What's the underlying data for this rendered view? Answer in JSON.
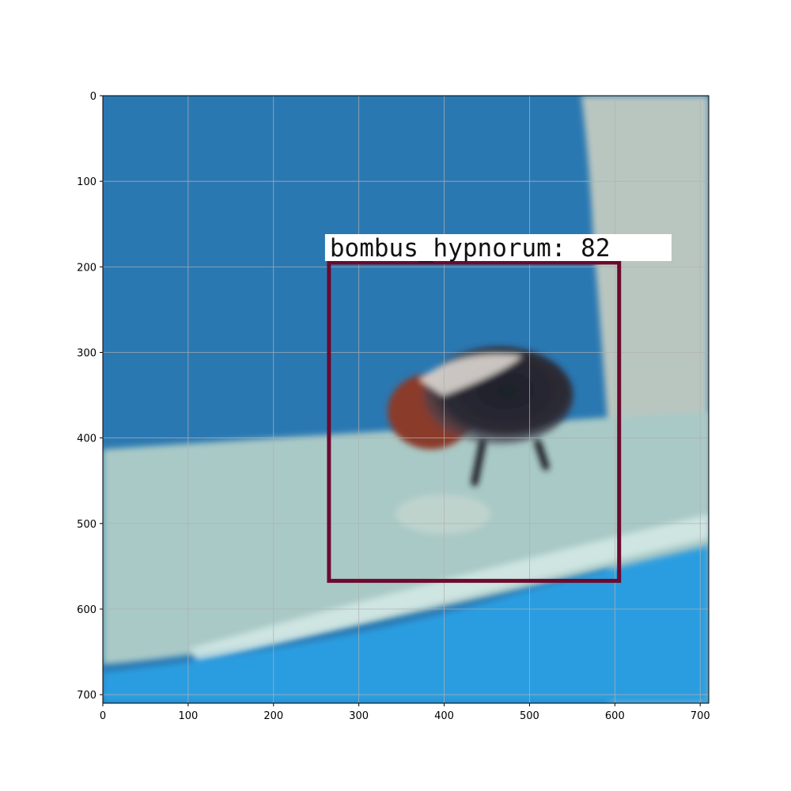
{
  "image": {
    "x_range": [
      0,
      710
    ],
    "y_range": [
      0,
      710
    ],
    "x_ticks": [
      0,
      100,
      200,
      300,
      400,
      500,
      600,
      700
    ],
    "y_ticks": [
      0,
      100,
      200,
      300,
      400,
      500,
      600,
      700
    ],
    "grid": true,
    "y_axis_inverted": true
  },
  "detection": {
    "label": "bombus_hypnorum: 82",
    "box": {
      "x_min": 265,
      "y_min": 195,
      "x_max": 605,
      "y_max": 567
    },
    "box_color": "#6b0a2e",
    "label_background": "#ffffff"
  },
  "colors": {
    "wall_blue": "#2a78b2",
    "right_panel": "#b9c6c0",
    "floor_glass": "#a9c9c6",
    "bottom_blue": "#2a9de0",
    "grid": "#b0b0b0"
  }
}
